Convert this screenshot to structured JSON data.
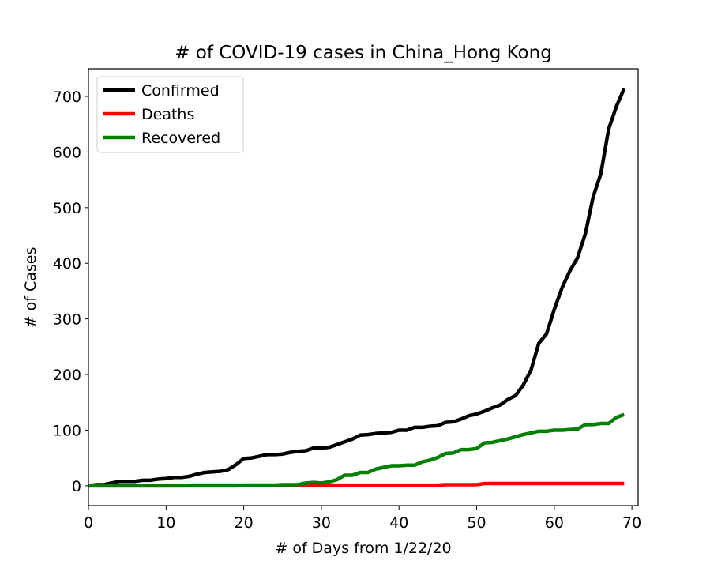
{
  "chart_data": {
    "type": "line",
    "title": "# of COVID-19 cases in China_Hong Kong",
    "x_label": "# of Days from 1/22/20",
    "y_label": "# of Cases",
    "x": [
      0,
      1,
      2,
      3,
      4,
      5,
      6,
      7,
      8,
      9,
      10,
      11,
      12,
      13,
      14,
      15,
      16,
      17,
      18,
      19,
      20,
      21,
      22,
      23,
      24,
      25,
      26,
      27,
      28,
      29,
      30,
      31,
      32,
      33,
      34,
      35,
      36,
      37,
      38,
      39,
      40,
      41,
      42,
      43,
      44,
      45,
      46,
      47,
      48,
      49,
      50,
      51,
      52,
      53,
      54,
      55,
      56,
      57,
      58,
      59,
      60,
      61,
      62,
      63,
      64,
      65,
      66,
      67,
      68,
      69
    ],
    "series": [
      {
        "name": "Confirmed",
        "color": "#000000",
        "values": [
          0,
          2,
          2,
          5,
          8,
          8,
          8,
          10,
          10,
          12,
          13,
          15,
          15,
          17,
          21,
          24,
          25,
          26,
          29,
          38,
          49,
          50,
          53,
          56,
          56,
          57,
          60,
          62,
          63,
          68,
          68,
          69,
          74,
          79,
          84,
          91,
          92,
          94,
          95,
          96,
          100,
          100,
          105,
          105,
          107,
          108,
          114,
          115,
          120,
          126,
          129,
          134,
          140,
          145,
          155,
          162,
          181,
          208,
          256,
          273,
          317,
          356,
          386,
          410,
          453,
          519,
          561,
          641,
          682,
          714
        ]
      },
      {
        "name": "Deaths",
        "color": "#ff0000",
        "values": [
          0,
          0,
          0,
          0,
          0,
          0,
          0,
          0,
          0,
          0,
          0,
          0,
          0,
          1,
          1,
          1,
          1,
          1,
          1,
          1,
          1,
          1,
          1,
          1,
          1,
          1,
          1,
          1,
          1,
          1,
          1,
          1,
          1,
          1,
          1,
          1,
          1,
          1,
          1,
          1,
          1,
          1,
          1,
          1,
          1,
          1,
          2,
          2,
          2,
          2,
          2,
          4,
          4,
          4,
          4,
          4,
          4,
          4,
          4,
          4,
          4,
          4,
          4,
          4,
          4,
          4,
          4,
          4,
          4,
          4
        ]
      },
      {
        "name": "Recovered",
        "color": "#008000",
        "values": [
          0,
          0,
          0,
          0,
          0,
          0,
          0,
          0,
          0,
          0,
          0,
          0,
          0,
          0,
          0,
          0,
          0,
          0,
          0,
          0,
          1,
          1,
          1,
          1,
          1,
          2,
          2,
          2,
          5,
          6,
          5,
          7,
          11,
          19,
          19,
          24,
          24,
          30,
          33,
          36,
          36,
          37,
          37,
          43,
          46,
          51,
          58,
          59,
          65,
          65,
          67,
          77,
          78,
          81,
          84,
          88,
          92,
          95,
          98,
          98,
          100,
          100,
          101,
          102,
          110,
          110,
          112,
          112,
          123,
          128
        ]
      }
    ],
    "xlim": [
      0,
      70.8
    ],
    "xticks": [
      0,
      10,
      20,
      30,
      40,
      50,
      60,
      70
    ],
    "ylim": [
      -35.7,
      749.7
    ],
    "yticks": [
      0,
      100,
      200,
      300,
      400,
      500,
      600,
      700
    ],
    "legend": "upper left"
  }
}
